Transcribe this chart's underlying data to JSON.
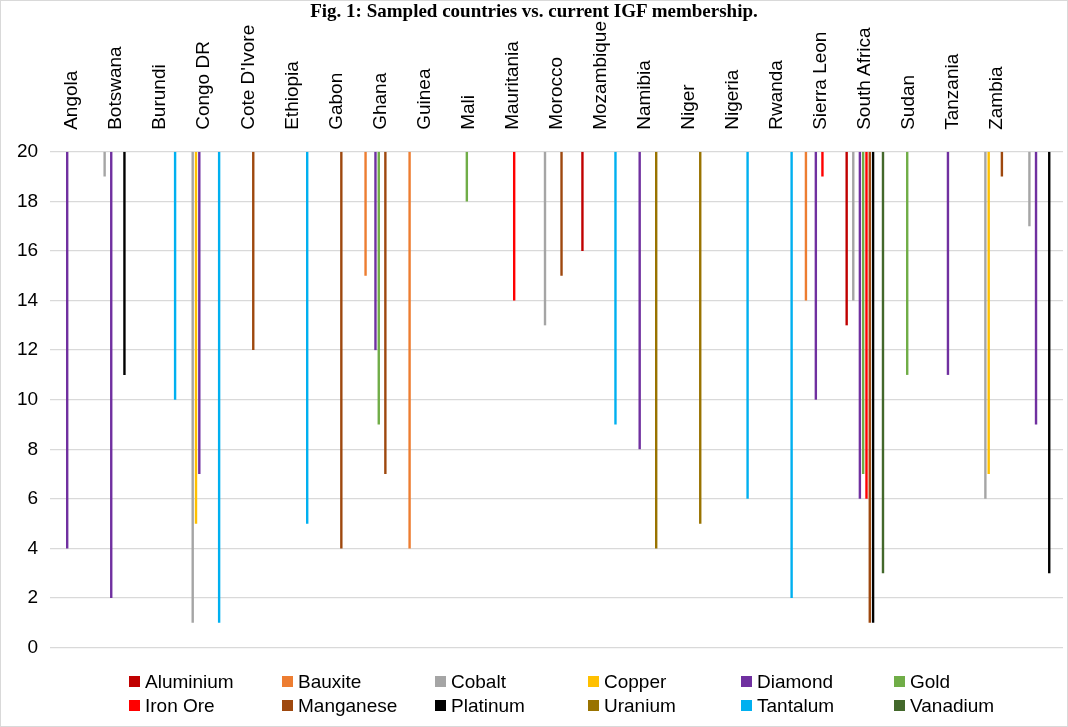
{
  "chart_data": {
    "type": "bar",
    "title": "Fig. 1: Sampled countries vs. current IGF membership.",
    "categories": [
      "Angola",
      "Botswana",
      "Burundi",
      "Congo DR",
      "Cote D'Ivore",
      "Ethiopia",
      "Gabon",
      "Ghana",
      "Guinea",
      "Mali",
      "Mauritania",
      "Morocco",
      "Mozambique",
      "Namibia",
      "Niger",
      "Nigeria",
      "Rwanda",
      "Sierra Leon",
      "South Africa",
      "Sudan",
      "Tanzania",
      "Zambia",
      null
    ],
    "series": [
      {
        "name": "Aluminium",
        "color": "#c00000",
        "values": [
          null,
          null,
          null,
          null,
          null,
          null,
          null,
          null,
          null,
          null,
          null,
          null,
          -4,
          null,
          null,
          null,
          null,
          null,
          -7,
          null,
          null,
          null,
          null
        ],
        "base": [
          null,
          null,
          null,
          null,
          null,
          null,
          null,
          null,
          null,
          null,
          null,
          null,
          20,
          null,
          null,
          null,
          null,
          null,
          20,
          null,
          null,
          null,
          null
        ]
      },
      {
        "name": "Bauxite",
        "color": "#ed7d31",
        "values": [
          null,
          null,
          null,
          null,
          null,
          null,
          null,
          -5,
          -16,
          null,
          null,
          null,
          null,
          null,
          null,
          null,
          null,
          -6,
          null,
          null,
          null,
          null,
          null
        ],
        "base": [
          null,
          null,
          null,
          null,
          null,
          null,
          null,
          20,
          20,
          null,
          null,
          null,
          null,
          null,
          null,
          null,
          null,
          20,
          null,
          null,
          null,
          null,
          null
        ]
      },
      {
        "name": "Cobalt",
        "color": "#a5a5a5",
        "values": [
          null,
          -1,
          null,
          -19,
          null,
          null,
          null,
          null,
          null,
          null,
          null,
          -7,
          null,
          null,
          null,
          null,
          null,
          null,
          -6,
          null,
          null,
          -14,
          -3
        ],
        "base": [
          null,
          20,
          null,
          20,
          null,
          null,
          null,
          null,
          null,
          null,
          null,
          20,
          null,
          null,
          null,
          null,
          null,
          null,
          20,
          null,
          null,
          20,
          20
        ]
      },
      {
        "name": "Copper",
        "color": "#ffc000",
        "values": [
          null,
          null,
          null,
          -15,
          null,
          null,
          null,
          null,
          null,
          null,
          null,
          null,
          null,
          null,
          null,
          null,
          null,
          null,
          null,
          null,
          null,
          -13,
          null
        ],
        "base": [
          null,
          null,
          null,
          20,
          null,
          null,
          null,
          null,
          null,
          null,
          null,
          null,
          null,
          null,
          null,
          null,
          null,
          null,
          null,
          null,
          null,
          20,
          null
        ]
      },
      {
        "name": "Diamond",
        "color": "#7030a0",
        "values": [
          -16,
          -18,
          null,
          -13,
          null,
          null,
          null,
          -8,
          null,
          null,
          null,
          null,
          null,
          -12,
          null,
          null,
          null,
          -10,
          -14,
          null,
          -9,
          null,
          -11
        ],
        "base": [
          20,
          20,
          null,
          20,
          null,
          null,
          null,
          20,
          null,
          null,
          null,
          null,
          null,
          20,
          null,
          null,
          null,
          20,
          20,
          null,
          20,
          null,
          20
        ]
      },
      {
        "name": "Gold",
        "color": "#70ad47",
        "values": [
          null,
          null,
          null,
          null,
          null,
          null,
          null,
          -11,
          null,
          -2,
          null,
          null,
          null,
          null,
          null,
          null,
          null,
          null,
          -13,
          -9,
          null,
          null,
          null
        ],
        "base": [
          null,
          null,
          null,
          null,
          null,
          null,
          null,
          20,
          null,
          20,
          null,
          null,
          null,
          null,
          null,
          null,
          null,
          null,
          20,
          20,
          null,
          null,
          null
        ]
      },
      {
        "name": "Iron Ore",
        "color": "#ff0000",
        "values": [
          null,
          null,
          null,
          null,
          null,
          null,
          null,
          null,
          null,
          null,
          -6,
          null,
          null,
          null,
          null,
          null,
          null,
          -1,
          -14,
          null,
          null,
          null,
          null
        ],
        "base": [
          null,
          null,
          null,
          null,
          null,
          null,
          null,
          null,
          null,
          null,
          20,
          null,
          null,
          null,
          null,
          null,
          null,
          20,
          20,
          null,
          null,
          null,
          null
        ]
      },
      {
        "name": "Manganese",
        "color": "#9e480e",
        "values": [
          null,
          null,
          null,
          null,
          -8,
          null,
          -16,
          -13,
          null,
          null,
          null,
          -5,
          null,
          null,
          null,
          null,
          null,
          null,
          -19,
          null,
          null,
          -1,
          null
        ],
        "base": [
          null,
          null,
          null,
          null,
          20,
          null,
          20,
          20,
          null,
          null,
          null,
          20,
          null,
          null,
          null,
          null,
          null,
          null,
          20,
          null,
          null,
          20,
          null
        ]
      },
      {
        "name": "Platinum",
        "color": "#000000",
        "values": [
          null,
          -9,
          null,
          null,
          null,
          null,
          null,
          null,
          null,
          null,
          null,
          null,
          null,
          null,
          null,
          null,
          null,
          null,
          -19,
          null,
          null,
          null,
          -17
        ],
        "base": [
          null,
          20,
          null,
          null,
          null,
          null,
          null,
          null,
          null,
          null,
          null,
          null,
          null,
          null,
          null,
          null,
          null,
          null,
          20,
          null,
          null,
          null,
          20
        ]
      },
      {
        "name": "Uranium",
        "color": "#997300",
        "values": [
          null,
          null,
          null,
          null,
          null,
          null,
          null,
          null,
          null,
          null,
          null,
          null,
          null,
          -16,
          -15,
          null,
          null,
          null,
          null,
          null,
          null,
          null,
          null
        ],
        "base": [
          null,
          null,
          null,
          null,
          null,
          null,
          null,
          null,
          null,
          null,
          null,
          null,
          null,
          20,
          20,
          null,
          null,
          null,
          null,
          null,
          null,
          null,
          null
        ]
      },
      {
        "name": "Tantalum",
        "color": "#00b0f0",
        "values": [
          null,
          null,
          -10,
          -19,
          null,
          -15,
          null,
          null,
          null,
          null,
          null,
          null,
          -11,
          null,
          null,
          -14,
          -18,
          null,
          null,
          null,
          null,
          null,
          null
        ],
        "base": [
          null,
          null,
          20,
          20,
          null,
          20,
          null,
          null,
          null,
          null,
          null,
          null,
          20,
          null,
          null,
          20,
          20,
          null,
          null,
          null,
          null,
          null,
          null
        ]
      },
      {
        "name": "Vanadium",
        "color": "#43682b",
        "values": [
          null,
          null,
          null,
          null,
          null,
          null,
          null,
          null,
          null,
          null,
          null,
          null,
          null,
          null,
          null,
          null,
          null,
          null,
          -17,
          null,
          null,
          null,
          null
        ],
        "base": [
          null,
          null,
          null,
          null,
          null,
          null,
          null,
          null,
          null,
          null,
          null,
          null,
          null,
          null,
          null,
          null,
          null,
          null,
          20,
          null,
          null,
          null,
          null
        ]
      }
    ],
    "ylim": [
      0,
      20
    ],
    "yticks": [
      0,
      2,
      4,
      6,
      8,
      10,
      12,
      14,
      16,
      18,
      20
    ],
    "grid": "y",
    "legend": "bottom"
  }
}
